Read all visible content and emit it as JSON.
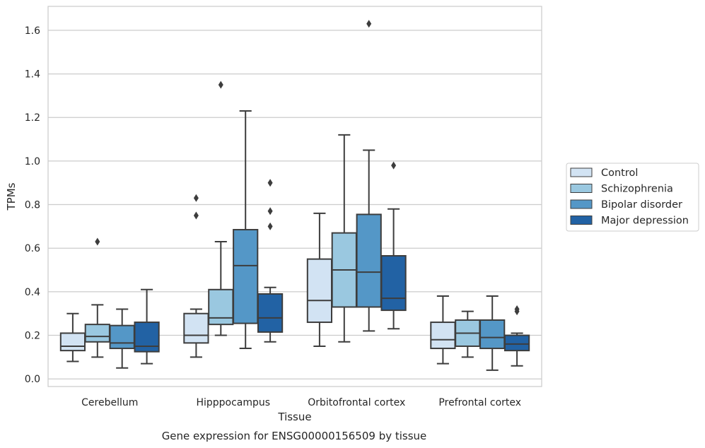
{
  "chart_data": {
    "type": "boxplot",
    "title": "",
    "caption": "Gene expression for ENSG00000156509 by tissue",
    "xlabel": "Tissue",
    "ylabel": "TPMs",
    "ylim": [
      -0.035,
      1.71
    ],
    "yticks": [
      "0.0",
      "0.2",
      "0.4",
      "0.6",
      "0.8",
      "1.0",
      "1.2",
      "1.4",
      "1.6"
    ],
    "ytick_values": [
      0.0,
      0.2,
      0.4,
      0.6,
      0.8,
      1.0,
      1.2,
      1.4,
      1.6
    ],
    "grid": "horizontal",
    "legend_position": "right",
    "categories": [
      "Cerebellum",
      "Hipppocampus",
      "Orbitofrontal cortex",
      "Prefrontal cortex"
    ],
    "series": [
      {
        "name": "Control",
        "color": "#d2e3f3",
        "boxes": [
          {
            "whislo": 0.08,
            "q1": 0.13,
            "med": 0.15,
            "q3": 0.21,
            "whishi": 0.3,
            "fliers": []
          },
          {
            "whislo": 0.1,
            "q1": 0.165,
            "med": 0.2,
            "q3": 0.3,
            "whishi": 0.32,
            "fliers": [
              0.75,
              0.83
            ]
          },
          {
            "whislo": 0.15,
            "q1": 0.26,
            "med": 0.36,
            "q3": 0.55,
            "whishi": 0.76,
            "fliers": []
          },
          {
            "whislo": 0.07,
            "q1": 0.14,
            "med": 0.18,
            "q3": 0.26,
            "whishi": 0.38,
            "fliers": []
          }
        ]
      },
      {
        "name": "Schizophrenia",
        "color": "#9ac8e0",
        "boxes": [
          {
            "whislo": 0.1,
            "q1": 0.17,
            "med": 0.195,
            "q3": 0.25,
            "whishi": 0.34,
            "fliers": [
              0.63
            ]
          },
          {
            "whislo": 0.2,
            "q1": 0.25,
            "med": 0.28,
            "q3": 0.41,
            "whishi": 0.63,
            "fliers": [
              1.35
            ]
          },
          {
            "whislo": 0.17,
            "q1": 0.33,
            "med": 0.5,
            "q3": 0.67,
            "whishi": 1.12,
            "fliers": []
          },
          {
            "whislo": 0.1,
            "q1": 0.15,
            "med": 0.21,
            "q3": 0.27,
            "whishi": 0.31,
            "fliers": []
          }
        ]
      },
      {
        "name": "Bipolar disorder",
        "color": "#5497c7",
        "boxes": [
          {
            "whislo": 0.05,
            "q1": 0.14,
            "med": 0.165,
            "q3": 0.245,
            "whishi": 0.32,
            "fliers": []
          },
          {
            "whislo": 0.14,
            "q1": 0.255,
            "med": 0.52,
            "q3": 0.685,
            "whishi": 1.23,
            "fliers": []
          },
          {
            "whislo": 0.22,
            "q1": 0.33,
            "med": 0.49,
            "q3": 0.755,
            "whishi": 1.05,
            "fliers": [
              1.63
            ]
          },
          {
            "whislo": 0.04,
            "q1": 0.14,
            "med": 0.19,
            "q3": 0.27,
            "whishi": 0.38,
            "fliers": []
          }
        ]
      },
      {
        "name": "Major depression",
        "color": "#2262a4",
        "boxes": [
          {
            "whislo": 0.07,
            "q1": 0.125,
            "med": 0.15,
            "q3": 0.26,
            "whishi": 0.41,
            "fliers": []
          },
          {
            "whislo": 0.17,
            "q1": 0.215,
            "med": 0.28,
            "q3": 0.39,
            "whishi": 0.42,
            "fliers": [
              0.7,
              0.77,
              0.9
            ]
          },
          {
            "whislo": 0.23,
            "q1": 0.315,
            "med": 0.37,
            "q3": 0.565,
            "whishi": 0.78,
            "fliers": [
              0.98
            ]
          },
          {
            "whislo": 0.06,
            "q1": 0.13,
            "med": 0.16,
            "q3": 0.2,
            "whishi": 0.21,
            "fliers": [
              0.31,
              0.32
            ]
          }
        ]
      }
    ]
  }
}
